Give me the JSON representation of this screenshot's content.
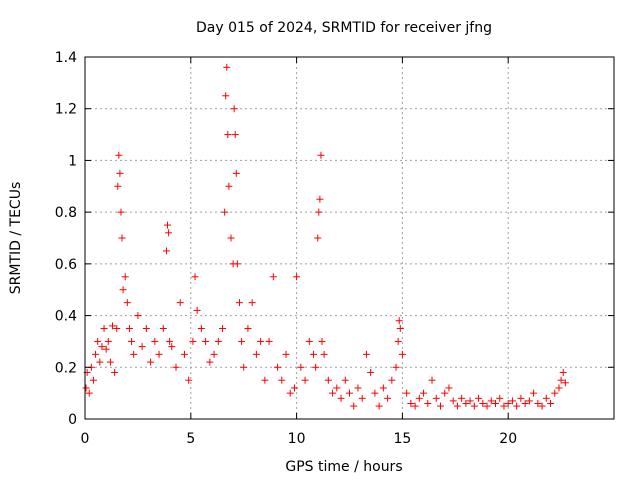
{
  "chart_data": {
    "type": "scatter",
    "title": "Day 015 of 2024, SRMTID for receiver jfng",
    "xlabel": "GPS time / hours",
    "ylabel": "SRMTID / TECUs",
    "xlim": [
      0,
      25
    ],
    "ylim": [
      0,
      1.4
    ],
    "xticks": [
      0,
      5,
      10,
      15,
      20
    ],
    "xtick_labels": [
      "0",
      "5",
      "10",
      "15",
      "20"
    ],
    "yticks": [
      0,
      0.2,
      0.4,
      0.6,
      0.8,
      1.0,
      1.2,
      1.4
    ],
    "ytick_labels": [
      "0",
      "0.2",
      "0.4",
      "0.6",
      "0.8",
      "1",
      "1.2",
      "1.4"
    ],
    "grid": true,
    "marker": "+",
    "series": [
      {
        "name": "SRMTID",
        "color": "#ff0000",
        "x": [
          0.05,
          0.1,
          0.2,
          0.3,
          0.4,
          0.5,
          0.6,
          0.7,
          0.8,
          0.9,
          1.0,
          1.1,
          1.2,
          1.3,
          1.4,
          1.5,
          1.55,
          1.6,
          1.65,
          1.7,
          1.75,
          1.8,
          1.9,
          2.0,
          2.1,
          2.2,
          2.3,
          2.5,
          2.7,
          2.9,
          3.1,
          3.3,
          3.5,
          3.7,
          3.85,
          3.9,
          3.95,
          4.0,
          4.1,
          4.3,
          4.5,
          4.7,
          4.9,
          5.1,
          5.2,
          5.3,
          5.5,
          5.7,
          5.9,
          6.1,
          6.3,
          6.5,
          6.6,
          6.65,
          6.7,
          6.75,
          6.8,
          6.9,
          7.0,
          7.05,
          7.1,
          7.15,
          7.2,
          7.3,
          7.4,
          7.5,
          7.7,
          7.9,
          8.1,
          8.3,
          8.5,
          8.7,
          8.9,
          9.1,
          9.3,
          9.5,
          9.7,
          9.9,
          10.0,
          10.2,
          10.4,
          10.6,
          10.8,
          10.9,
          11.0,
          11.05,
          11.1,
          11.15,
          11.2,
          11.3,
          11.5,
          11.7,
          11.9,
          12.1,
          12.3,
          12.5,
          12.7,
          12.9,
          13.1,
          13.3,
          13.5,
          13.7,
          13.9,
          14.1,
          14.3,
          14.5,
          14.7,
          14.8,
          14.85,
          14.9,
          15.0,
          15.2,
          15.4,
          15.6,
          15.8,
          16.0,
          16.2,
          16.4,
          16.6,
          16.8,
          17.0,
          17.2,
          17.4,
          17.6,
          17.8,
          18.0,
          18.2,
          18.4,
          18.6,
          18.8,
          19.0,
          19.2,
          19.4,
          19.6,
          19.8,
          20.0,
          20.2,
          20.4,
          20.6,
          20.8,
          21.0,
          21.2,
          21.4,
          21.6,
          21.8,
          22.0,
          22.2,
          22.4,
          22.5,
          22.6,
          22.7
        ],
        "y": [
          0.12,
          0.18,
          0.1,
          0.2,
          0.15,
          0.25,
          0.3,
          0.22,
          0.28,
          0.35,
          0.27,
          0.3,
          0.22,
          0.36,
          0.18,
          0.35,
          0.9,
          1.02,
          0.95,
          0.8,
          0.7,
          0.5,
          0.55,
          0.45,
          0.35,
          0.3,
          0.25,
          0.4,
          0.28,
          0.35,
          0.22,
          0.3,
          0.25,
          0.35,
          0.65,
          0.75,
          0.72,
          0.3,
          0.28,
          0.2,
          0.45,
          0.25,
          0.15,
          0.3,
          0.55,
          0.42,
          0.35,
          0.3,
          0.22,
          0.25,
          0.3,
          0.35,
          0.8,
          1.25,
          1.36,
          1.1,
          0.9,
          0.7,
          0.6,
          1.2,
          1.1,
          0.95,
          0.6,
          0.45,
          0.3,
          0.2,
          0.35,
          0.45,
          0.25,
          0.3,
          0.15,
          0.3,
          0.55,
          0.2,
          0.15,
          0.25,
          0.1,
          0.12,
          0.55,
          0.2,
          0.15,
          0.3,
          0.25,
          0.2,
          0.7,
          0.8,
          0.85,
          1.02,
          0.3,
          0.25,
          0.15,
          0.1,
          0.12,
          0.08,
          0.15,
          0.1,
          0.05,
          0.12,
          0.08,
          0.25,
          0.18,
          0.1,
          0.05,
          0.12,
          0.08,
          0.15,
          0.2,
          0.3,
          0.38,
          0.35,
          0.25,
          0.1,
          0.06,
          0.05,
          0.08,
          0.1,
          0.06,
          0.15,
          0.08,
          0.05,
          0.1,
          0.12,
          0.07,
          0.05,
          0.08,
          0.06,
          0.07,
          0.05,
          0.08,
          0.06,
          0.05,
          0.07,
          0.06,
          0.08,
          0.05,
          0.06,
          0.07,
          0.05,
          0.08,
          0.06,
          0.07,
          0.1,
          0.06,
          0.05,
          0.08,
          0.06,
          0.1,
          0.12,
          0.15,
          0.18,
          0.14
        ]
      }
    ]
  }
}
